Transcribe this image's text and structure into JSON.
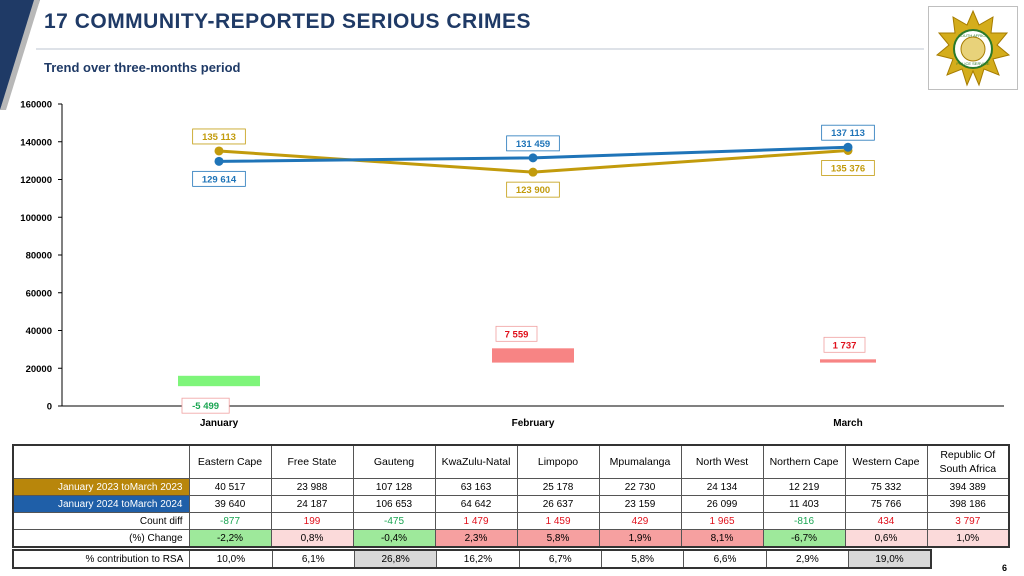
{
  "header": {
    "title": "17 COMMUNITY-REPORTED SERIOUS CRIMES",
    "subtitle": "Trend over three-months period",
    "page_number": "6",
    "logo_text_top": "SOUTH AFRICA",
    "logo_text_bottom": "POLICE SERVICE"
  },
  "colors": {
    "series_2023": "#c29b0c",
    "series_2024": "#1f74b8",
    "diff_negative": "#7ef57a",
    "diff_positive": "#f78484",
    "title": "#1f3a66"
  },
  "chart_data": {
    "type": "line",
    "categories": [
      "January",
      "February",
      "March"
    ],
    "ylim": [
      0,
      160000
    ],
    "yticks": [
      0,
      20000,
      40000,
      60000,
      80000,
      100000,
      120000,
      140000,
      160000
    ],
    "grid": false,
    "series": [
      {
        "name": "January 2023 toMarch 2023",
        "values": [
          135113,
          123900,
          135376
        ],
        "labels": [
          "135 113",
          "123 900",
          "135 376"
        ]
      },
      {
        "name": "January 2024 toMarch 2024",
        "values": [
          129614,
          131459,
          137113
        ],
        "labels": [
          "129 614",
          "131 459",
          "137 113"
        ]
      }
    ],
    "difference": {
      "values": [
        -5499,
        7559,
        1737
      ],
      "labels": [
        "-5 499",
        "7 559",
        "1 737"
      ],
      "base": [
        16000,
        23000,
        23000
      ]
    }
  },
  "table": {
    "columns": [
      "Eastern Cape",
      "Free State",
      "Gauteng",
      "KwaZulu-Natal",
      "Limpopo",
      "Mpumalanga",
      "North West",
      "Northern Cape",
      "Western Cape",
      "Republic Of South Africa"
    ],
    "rows": {
      "y2023": {
        "label": "January 2023 toMarch 2023",
        "values": [
          "40 517",
          "23 988",
          "107 128",
          "63 163",
          "25 178",
          "22 730",
          "24 134",
          "12 219",
          "75 332",
          "394 389"
        ]
      },
      "y2024": {
        "label": "January 2024 toMarch 2024",
        "values": [
          "39 640",
          "24 187",
          "106 653",
          "64 642",
          "26 637",
          "23 159",
          "26 099",
          "11 403",
          "75 766",
          "398 186"
        ]
      },
      "diff": {
        "label": "Count diff",
        "values": [
          "-877",
          "199",
          "-475",
          "1 479",
          "1 459",
          "429",
          "1 965",
          "-816",
          "434",
          "3 797"
        ]
      },
      "pct": {
        "label": "(%) Change",
        "values": [
          "-2,2%",
          "0,8%",
          "-0,4%",
          "2,3%",
          "5,8%",
          "1,9%",
          "8,1%",
          "-6,7%",
          "0,6%",
          "1,0%"
        ]
      }
    },
    "contribution": {
      "label": "% contribution to RSA",
      "values": [
        "10,0%",
        "6,1%",
        "26,8%",
        "16,2%",
        "6,7%",
        "5,8%",
        "6,6%",
        "2,9%",
        "19,0%"
      ]
    }
  }
}
